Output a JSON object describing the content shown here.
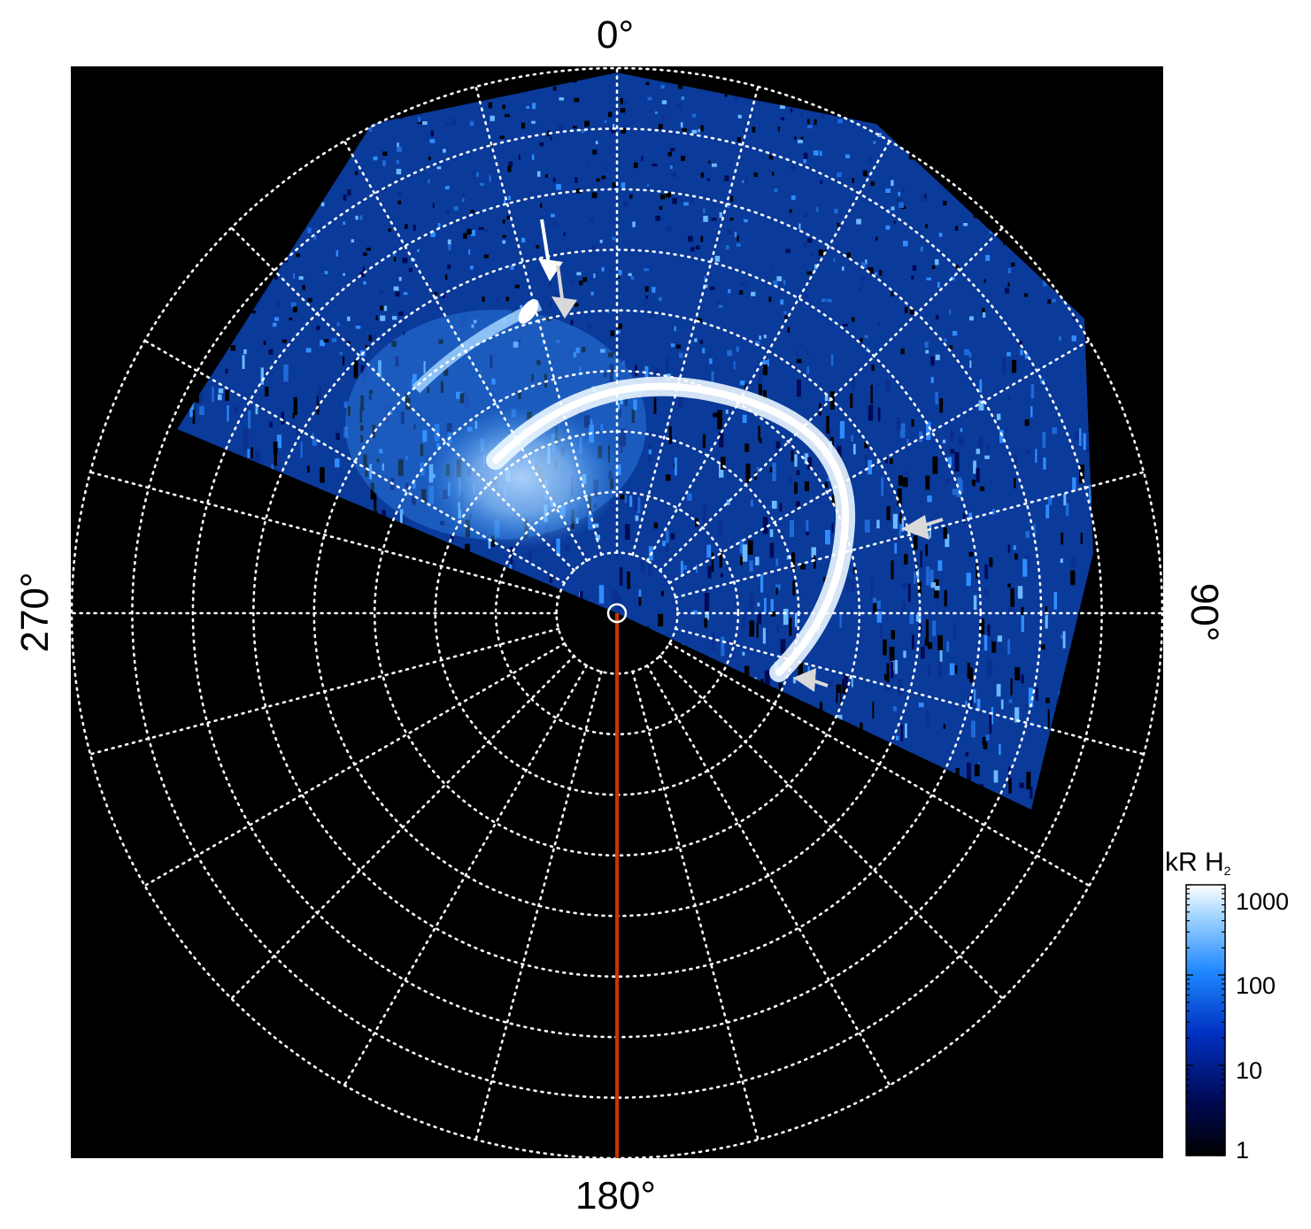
{
  "figure": {
    "projection": "polar",
    "background_color": "#000000",
    "grid_color": "#ffffff",
    "grid_style": "dotted",
    "meridian_line_color": "#cc3300",
    "longitude_labels": {
      "top": "0°",
      "right": "90°",
      "bottom": "180°",
      "left": "270°"
    },
    "latitude_circles": 9,
    "meridian_spacing_deg": 15
  },
  "colorbar": {
    "title_main": "kR H",
    "title_sub": "2",
    "scale": "log",
    "range": [
      1,
      1000
    ],
    "tick_labels": [
      "1000",
      "100",
      "10",
      "1"
    ],
    "colors": [
      "#000000",
      "#000a55",
      "#0030c0",
      "#1e88ff",
      "#9fd3ff",
      "#ffffff"
    ]
  },
  "annotations": {
    "arrow_color": "#d9d9d9",
    "arrow_count": 4
  }
}
